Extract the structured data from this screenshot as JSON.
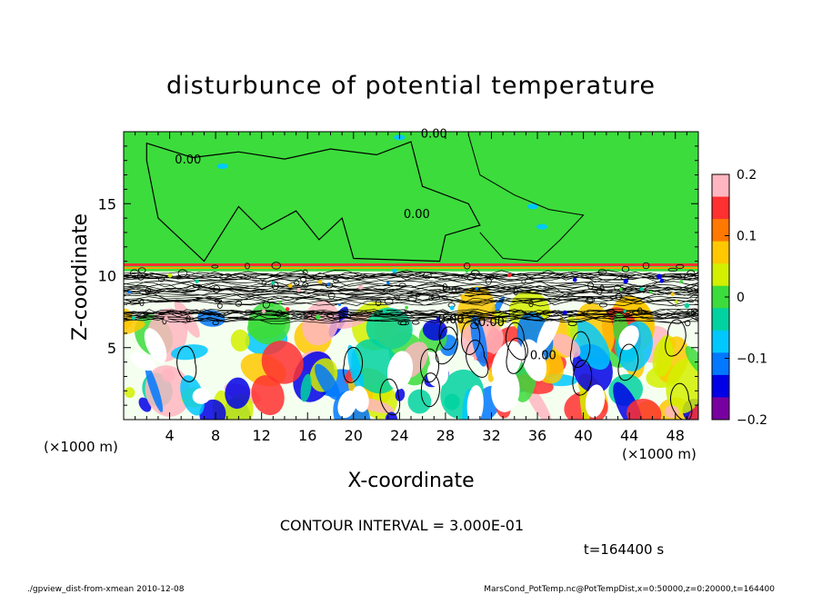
{
  "chart_data": {
    "type": "heatmap",
    "title": "disturbunce of potential temperature",
    "xlabel": "X-coordinate",
    "ylabel": "Z-coordinate",
    "x_unit": "(×1000 m)",
    "y_unit": "(×1000 m)",
    "xlim": [
      0,
      50
    ],
    "ylim": [
      0,
      20
    ],
    "x_ticks": [
      4,
      8,
      12,
      16,
      20,
      24,
      28,
      32,
      36,
      40,
      44,
      48
    ],
    "y_ticks": [
      5,
      10,
      15
    ],
    "colorbar": {
      "range": [
        -0.2,
        0.2
      ],
      "tick_values": [
        0.2,
        0.1,
        0,
        -0.1,
        -0.2
      ],
      "tick_labels": [
        "0.2",
        "0.1",
        "0",
        "−0.1",
        "−0.2"
      ],
      "colors": [
        "#ffb6c1",
        "#ff3030",
        "#ff7800",
        "#ffc800",
        "#d2f000",
        "#3cdc3c",
        "#00d2a0",
        "#00c8ff",
        "#0078ff",
        "#0000e6",
        "#7800a0"
      ]
    },
    "contour_labels": [
      "0.00",
      "0.00",
      "0.00",
      "0.00",
      "0.00",
      "0.00"
    ],
    "contour_interval": "CONTOUR INTERVAL = 3.000E-01",
    "grid": false
  },
  "annotations": {
    "time": "t=164400 s",
    "footer_left": "./gpview_dist-from-xmean  2010-12-08",
    "footer_right": "MarsCond_PotTemp.nc@PotTempDist,x=0:50000,z=0:20000,t=164400"
  }
}
